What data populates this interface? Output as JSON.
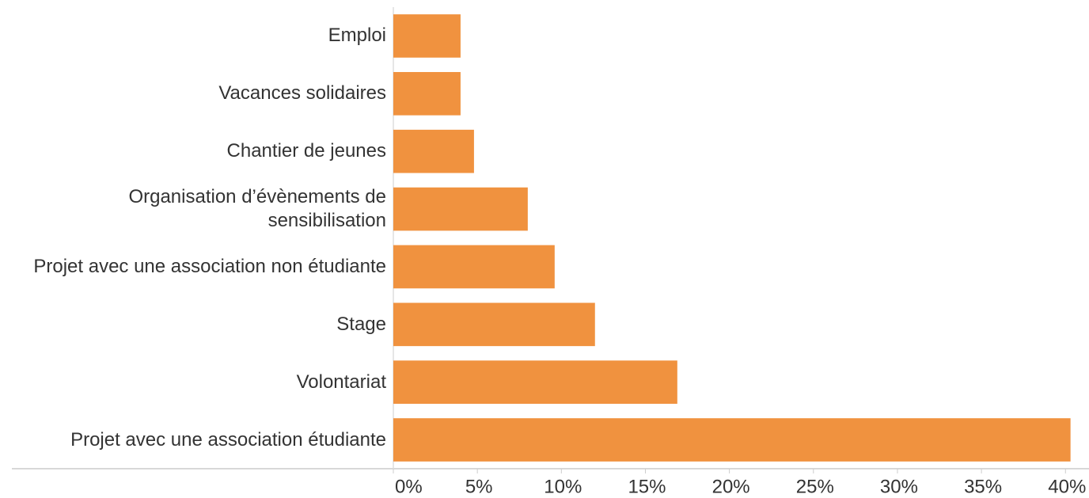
{
  "chart_data": {
    "type": "bar",
    "orientation": "horizontal",
    "categories": [
      "Emploi",
      "Vacances solidaires",
      "Chantier de jeunes",
      "Organisation d’évènements de sensibilisation",
      "Projet avec une association non étudiante",
      "Stage",
      "Volontariat",
      "Projet avec une association étudiante"
    ],
    "values": [
      4.0,
      4.0,
      4.8,
      8.0,
      9.6,
      12.0,
      16.9,
      40.3
    ],
    "color": "#f0923f",
    "xlim": [
      0,
      41.4
    ],
    "xticks": [
      {
        "value": 0,
        "label": "0%"
      },
      {
        "value": 5,
        "label": "5%"
      },
      {
        "value": 10,
        "label": "10%"
      },
      {
        "value": 15,
        "label": "15%"
      },
      {
        "value": 20,
        "label": "20%"
      },
      {
        "value": 25,
        "label": "25%"
      },
      {
        "value": 30,
        "label": "30%"
      },
      {
        "value": 35,
        "label": "35%"
      },
      {
        "value": 40,
        "label": "40%"
      }
    ]
  }
}
